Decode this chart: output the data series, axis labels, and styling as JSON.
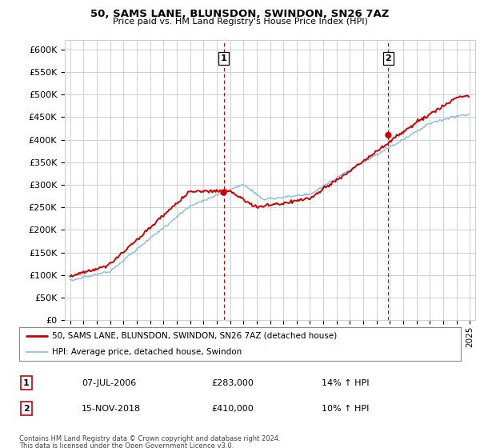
{
  "title": "50, SAMS LANE, BLUNSDON, SWINDON, SN26 7AZ",
  "subtitle": "Price paid vs. HM Land Registry's House Price Index (HPI)",
  "legend_line1": "50, SAMS LANE, BLUNSDON, SWINDON, SN26 7AZ (detached house)",
  "legend_line2": "HPI: Average price, detached house, Swindon",
  "ann1_label": "1",
  "ann1_date": "07-JUL-2006",
  "ann1_price": "£283,000",
  "ann1_hpi": "14% ↑ HPI",
  "ann1_x": 2006.52,
  "ann1_y": 283000,
  "ann2_label": "2",
  "ann2_date": "15-NOV-2018",
  "ann2_price": "£410,000",
  "ann2_hpi": "10% ↑ HPI",
  "ann2_x": 2018.88,
  "ann2_y": 410000,
  "footnote1": "Contains HM Land Registry data © Crown copyright and database right 2024.",
  "footnote2": "This data is licensed under the Open Government Licence v3.0.",
  "price_color": "#cc0000",
  "hpi_color": "#88bbdd",
  "ylim_min": 0,
  "ylim_max": 620000,
  "yticks": [
    0,
    50000,
    100000,
    150000,
    200000,
    250000,
    300000,
    350000,
    400000,
    450000,
    500000,
    550000,
    600000
  ],
  "xlim_start": 1994.6,
  "xlim_end": 2025.4,
  "background_color": "#ffffff",
  "grid_color": "#d0d0d0"
}
